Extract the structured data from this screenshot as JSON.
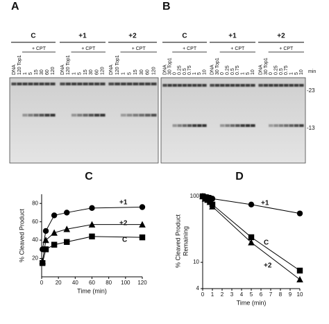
{
  "gels": [
    {
      "panel": "A",
      "groups": [
        "C",
        "+1",
        "+2"
      ],
      "treatment": "+ CPT",
      "lanes": [
        "DNA",
        "120 Top1",
        "1",
        "5",
        "15",
        "30",
        "60",
        "120"
      ]
    },
    {
      "panel": "B",
      "groups": [
        "C",
        "+1",
        "+2"
      ],
      "treatment": "+ CPT",
      "lanes": [
        "DNA",
        "30 Top1",
        "0",
        "0.25",
        "0.5",
        "0.75",
        "1",
        "5",
        "10"
      ],
      "unit": "min",
      "markers": [
        "-23",
        "-13"
      ]
    }
  ],
  "chart_data": [
    {
      "type": "line",
      "title": "C",
      "xlabel": "Time (min)",
      "ylabel": [
        "% Cleaved Product"
      ],
      "x": [
        1,
        5,
        15,
        30,
        60,
        120
      ],
      "series": [
        {
          "name": "+1",
          "color": "#000000",
          "marker": "circle",
          "values": [
            30,
            50,
            67,
            70,
            75,
            76
          ]
        },
        {
          "name": "+2",
          "color": "#000000",
          "marker": "triangle",
          "values": [
            17,
            40,
            48,
            52,
            57,
            57
          ]
        },
        {
          "name": "C",
          "color": "#000000",
          "marker": "square",
          "values": [
            15,
            30,
            35,
            38,
            44,
            43
          ]
        }
      ],
      "xlim": [
        0,
        120
      ],
      "ylim": [
        0,
        90
      ],
      "xticks": [
        0,
        20,
        40,
        60,
        80,
        100,
        120
      ],
      "yticks": [
        20,
        40,
        60,
        80
      ],
      "log_y": false
    },
    {
      "type": "line",
      "title": "D",
      "xlabel": "Time (min)",
      "ylabel": [
        "% Cleaved Product",
        "Remaining"
      ],
      "x": [
        0,
        0.25,
        0.5,
        0.75,
        1,
        5,
        10
      ],
      "series": [
        {
          "name": "+1",
          "color": "#000000",
          "marker": "circle",
          "values": [
            100,
            98,
            97,
            95,
            92,
            75,
            55
          ]
        },
        {
          "name": "C",
          "color": "#000000",
          "marker": "square",
          "values": [
            100,
            95,
            90,
            85,
            75,
            24,
            7.5
          ]
        },
        {
          "name": "+2",
          "color": "#000000",
          "marker": "triangle",
          "values": [
            100,
            92,
            88,
            82,
            70,
            20,
            5.5
          ]
        }
      ],
      "xlim": [
        0,
        10
      ],
      "ylim": [
        4,
        110
      ],
      "xticks": [
        0,
        1,
        2,
        3,
        4,
        5,
        6,
        7,
        8,
        9,
        10
      ],
      "yticks": [
        4,
        10,
        100
      ],
      "log_y": true
    }
  ]
}
